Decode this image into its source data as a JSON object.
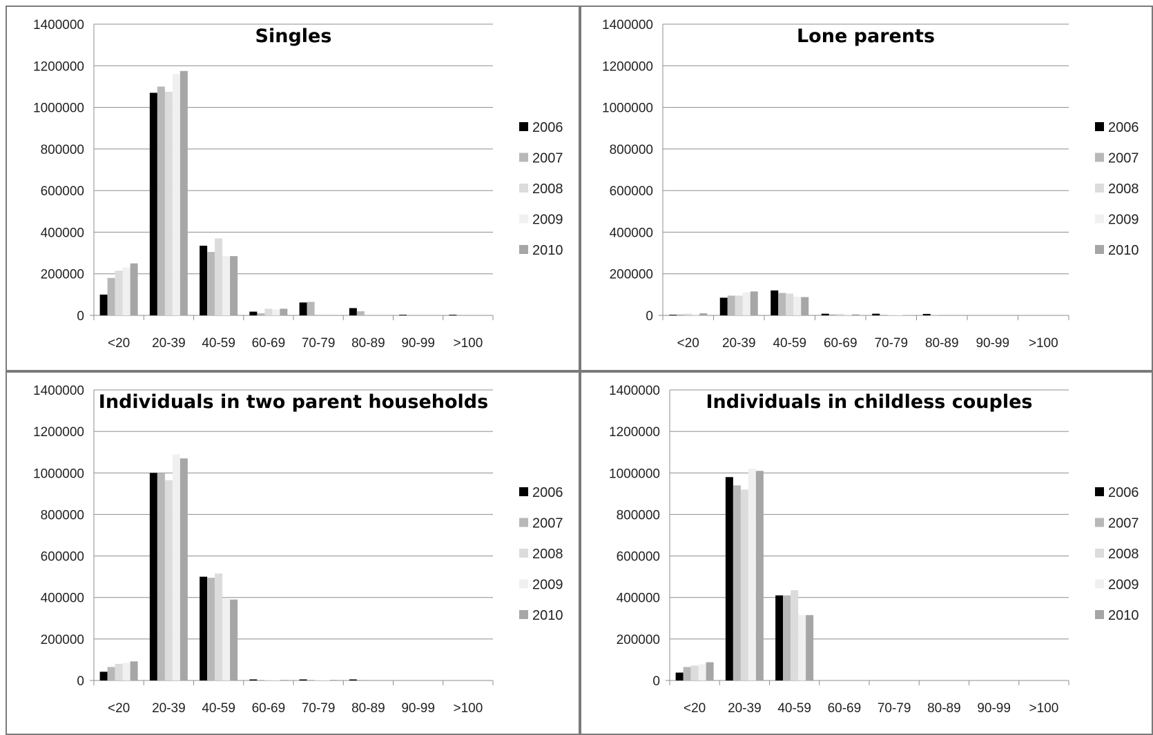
{
  "chart_data": [
    {
      "type": "bar",
      "title": "Singles",
      "categories": [
        "<20",
        "20-39",
        "40-59",
        "60-69",
        "70-79",
        "80-89",
        "90-99",
        ">100"
      ],
      "ylim": [
        0,
        1400000
      ],
      "yticks": [
        0,
        200000,
        400000,
        600000,
        800000,
        1000000,
        1200000,
        1400000
      ],
      "legend_position": "right",
      "grid": true,
      "series": [
        {
          "name": "2006",
          "color": "#000000",
          "values": [
            100000,
            1070000,
            335000,
            18000,
            62000,
            35000,
            3000,
            3000
          ]
        },
        {
          "name": "2007",
          "color": "#b8b8b8",
          "values": [
            180000,
            1100000,
            305000,
            10000,
            65000,
            20000,
            0,
            0
          ]
        },
        {
          "name": "2008",
          "color": "#dcdcdc",
          "values": [
            215000,
            1075000,
            370000,
            32000,
            0,
            0,
            0,
            0
          ]
        },
        {
          "name": "2009",
          "color": "#f0f0f0",
          "values": [
            230000,
            1160000,
            285000,
            28000,
            0,
            0,
            0,
            0
          ]
        },
        {
          "name": "2010",
          "color": "#a6a6a6",
          "values": [
            250000,
            1175000,
            285000,
            32000,
            0,
            0,
            0,
            0
          ]
        }
      ]
    },
    {
      "type": "bar",
      "title": "Lone parents",
      "categories": [
        "<20",
        "20-39",
        "40-59",
        "60-69",
        "70-79",
        "80-89",
        "90-99",
        ">100"
      ],
      "ylim": [
        0,
        1400000
      ],
      "yticks": [
        0,
        200000,
        400000,
        600000,
        800000,
        1000000,
        1200000,
        1400000
      ],
      "legend_position": "right",
      "grid": true,
      "series": [
        {
          "name": "2006",
          "color": "#000000",
          "values": [
            3000,
            85000,
            120000,
            8000,
            8000,
            7000,
            0,
            0
          ]
        },
        {
          "name": "2007",
          "color": "#b8b8b8",
          "values": [
            5000,
            95000,
            108000,
            5000,
            3000,
            2000,
            0,
            0
          ]
        },
        {
          "name": "2008",
          "color": "#dcdcdc",
          "values": [
            8000,
            95000,
            105000,
            7000,
            2000,
            0,
            0,
            0
          ]
        },
        {
          "name": "2009",
          "color": "#f0f0f0",
          "values": [
            7000,
            110000,
            90000,
            5000,
            2000,
            0,
            0,
            0
          ]
        },
        {
          "name": "2010",
          "color": "#a6a6a6",
          "values": [
            10000,
            115000,
            88000,
            5000,
            1000,
            0,
            0,
            0
          ]
        }
      ]
    },
    {
      "type": "bar",
      "title": "Individuals in two parent households",
      "categories": [
        "<20",
        "20-39",
        "40-59",
        "60-69",
        "70-79",
        "80-89",
        "90-99",
        ">100"
      ],
      "ylim": [
        0,
        1400000
      ],
      "yticks": [
        0,
        200000,
        400000,
        600000,
        800000,
        1000000,
        1200000,
        1400000
      ],
      "legend_position": "right",
      "grid": true,
      "series": [
        {
          "name": "2006",
          "color": "#000000",
          "values": [
            42000,
            1000000,
            500000,
            5000,
            5000,
            5000,
            0,
            0
          ]
        },
        {
          "name": "2007",
          "color": "#b8b8b8",
          "values": [
            65000,
            1000000,
            495000,
            3000,
            3000,
            3000,
            0,
            0
          ]
        },
        {
          "name": "2008",
          "color": "#dcdcdc",
          "values": [
            80000,
            965000,
            515000,
            2000,
            2000,
            0,
            0,
            0
          ]
        },
        {
          "name": "2009",
          "color": "#f0f0f0",
          "values": [
            85000,
            1090000,
            395000,
            2000,
            2000,
            0,
            0,
            0
          ]
        },
        {
          "name": "2010",
          "color": "#a6a6a6",
          "values": [
            92000,
            1070000,
            390000,
            3000,
            3000,
            0,
            0,
            0
          ]
        }
      ]
    },
    {
      "type": "bar",
      "title": "Individuals in childless couples",
      "categories": [
        "<20",
        "20-39",
        "40-59",
        "60-69",
        "70-79",
        "80-89",
        "90-99",
        ">100"
      ],
      "ylim": [
        0,
        1400000
      ],
      "yticks": [
        0,
        200000,
        400000,
        600000,
        800000,
        1000000,
        1200000,
        1400000
      ],
      "legend_position": "right",
      "grid": true,
      "series": [
        {
          "name": "2006",
          "color": "#000000",
          "values": [
            38000,
            980000,
            410000,
            0,
            0,
            0,
            0,
            0
          ]
        },
        {
          "name": "2007",
          "color": "#b8b8b8",
          "values": [
            65000,
            940000,
            410000,
            0,
            0,
            0,
            0,
            0
          ]
        },
        {
          "name": "2008",
          "color": "#dcdcdc",
          "values": [
            72000,
            920000,
            435000,
            0,
            0,
            0,
            0,
            0
          ]
        },
        {
          "name": "2009",
          "color": "#f0f0f0",
          "values": [
            78000,
            1020000,
            315000,
            0,
            0,
            0,
            0,
            0
          ]
        },
        {
          "name": "2010",
          "color": "#a6a6a6",
          "values": [
            88000,
            1010000,
            315000,
            0,
            0,
            0,
            0,
            0
          ]
        }
      ]
    }
  ]
}
